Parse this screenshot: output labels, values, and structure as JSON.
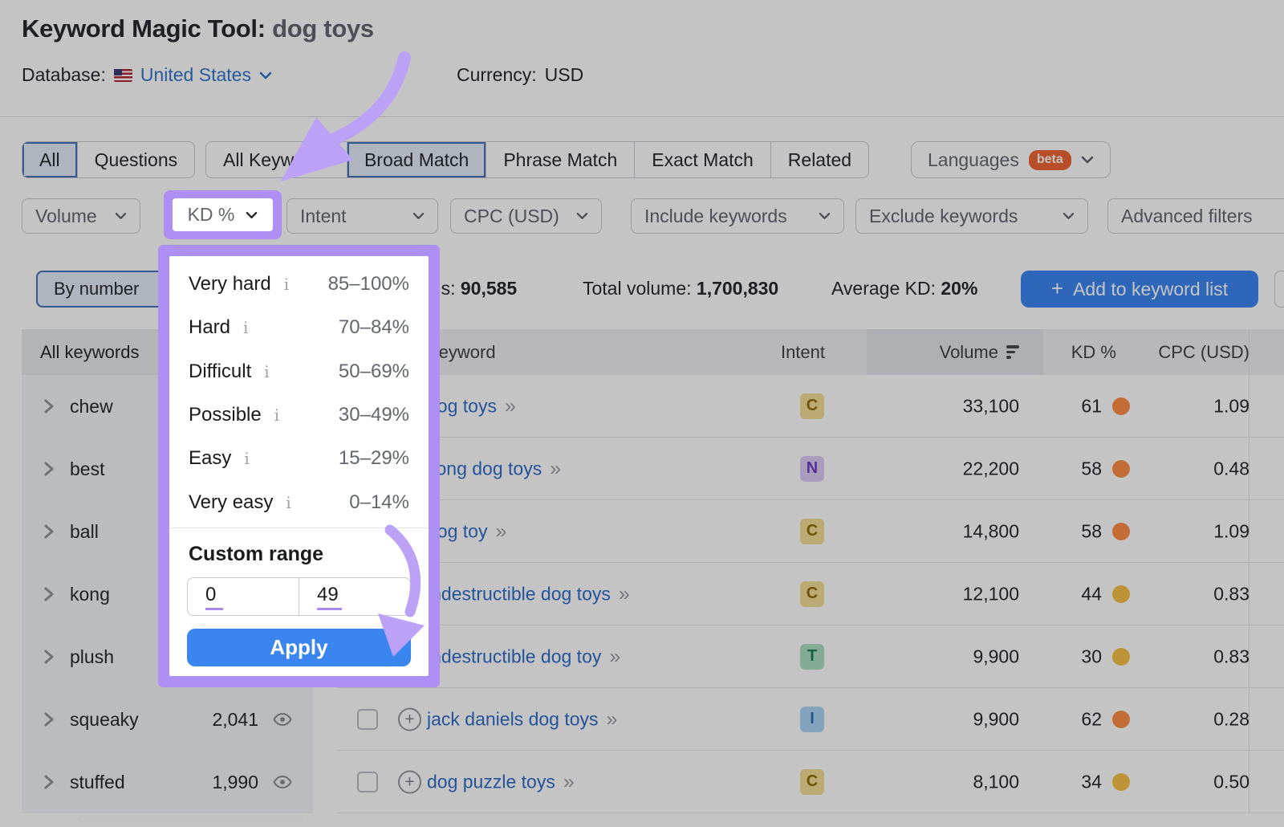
{
  "header": {
    "title": "Keyword Magic Tool:",
    "query": "dog toys",
    "database_label": "Database:",
    "database_value": "United States",
    "currency_label": "Currency:",
    "currency_value": "USD"
  },
  "tabs": {
    "group1": [
      {
        "label": "All",
        "selected": true
      },
      {
        "label": "Questions",
        "selected": false
      }
    ],
    "group2": [
      {
        "label": "All Keywords",
        "selected": false
      },
      {
        "label": "Broad Match",
        "selected": true
      },
      {
        "label": "Phrase Match",
        "selected": false
      },
      {
        "label": "Exact Match",
        "selected": false
      },
      {
        "label": "Related",
        "selected": false
      }
    ],
    "languages_label": "Languages",
    "languages_badge": "beta"
  },
  "filters": {
    "volume": "Volume",
    "kd": "KD %",
    "intent": "Intent",
    "cpc": "CPC (USD)",
    "include": "Include keywords",
    "exclude": "Exclude keywords",
    "advanced": "Advanced filters"
  },
  "kd_popup": {
    "levels": [
      {
        "label": "Very hard",
        "range": "85–100%"
      },
      {
        "label": "Hard",
        "range": "70–84%"
      },
      {
        "label": "Difficult",
        "range": "50–69%"
      },
      {
        "label": "Possible",
        "range": "30–49%"
      },
      {
        "label": "Easy",
        "range": "15–29%"
      },
      {
        "label": "Very easy",
        "range": "0–14%"
      }
    ],
    "custom_range_label": "Custom range",
    "from": "0",
    "to": "49",
    "apply_label": "Apply"
  },
  "stats": {
    "by_number_label": "By number",
    "keywords_label": "All keywords:",
    "keywords_value": "90,585",
    "total_volume_label": "Total volume:",
    "total_volume_value": "1,700,830",
    "avg_kd_label": "Average KD:",
    "avg_kd_value": "20%",
    "add_button_label": "Add to keyword list",
    "add_button_plus": "+"
  },
  "sidebar": {
    "header": "All keywords",
    "items": [
      {
        "label": "chew",
        "count": "",
        "has_count": false
      },
      {
        "label": "best",
        "count": "",
        "has_count": false
      },
      {
        "label": "ball",
        "count": "",
        "has_count": false
      },
      {
        "label": "kong",
        "count": "",
        "has_count": false
      },
      {
        "label": "plush",
        "count": "",
        "has_count": false
      },
      {
        "label": "squeaky",
        "count": "2,041",
        "has_count": true
      },
      {
        "label": "stuffed",
        "count": "1,990",
        "has_count": true
      }
    ]
  },
  "table": {
    "header": {
      "keyword": "Keyword",
      "intent": "Intent",
      "volume": "Volume",
      "kd": "KD %",
      "cpc": "CPC (USD)"
    },
    "rows": [
      {
        "keyword": "dog toys",
        "intent": "C",
        "volume": "33,100",
        "kd": "61",
        "kd_level": "orange",
        "cpc": "1.09"
      },
      {
        "keyword": "kong dog toys",
        "intent": "N",
        "volume": "22,200",
        "kd": "58",
        "kd_level": "orange",
        "cpc": "0.48"
      },
      {
        "keyword": "dog toy",
        "intent": "C",
        "volume": "14,800",
        "kd": "58",
        "kd_level": "orange",
        "cpc": "1.09"
      },
      {
        "keyword": "indestructible dog toys",
        "intent": "C",
        "volume": "12,100",
        "kd": "44",
        "kd_level": "amber",
        "cpc": "0.83"
      },
      {
        "keyword": "indestructible dog toy",
        "intent": "T",
        "volume": "9,900",
        "kd": "30",
        "kd_level": "amber",
        "cpc": "0.83"
      },
      {
        "keyword": "jack daniels dog toys",
        "intent": "I",
        "volume": "9,900",
        "kd": "62",
        "kd_level": "orange",
        "cpc": "0.28"
      },
      {
        "keyword": "dog puzzle toys",
        "intent": "C",
        "volume": "8,100",
        "kd": "34",
        "kd_level": "amber",
        "cpc": "0.50"
      }
    ]
  },
  "colors": {
    "highlight_purple": "#AE8FF3",
    "arrow_purple": "#BCA2F7",
    "primary_blue": "#3A85F0",
    "kd_orange": "#FF8C43",
    "kd_amber": "#F5C043",
    "link_blue": "#2F6BC6"
  }
}
